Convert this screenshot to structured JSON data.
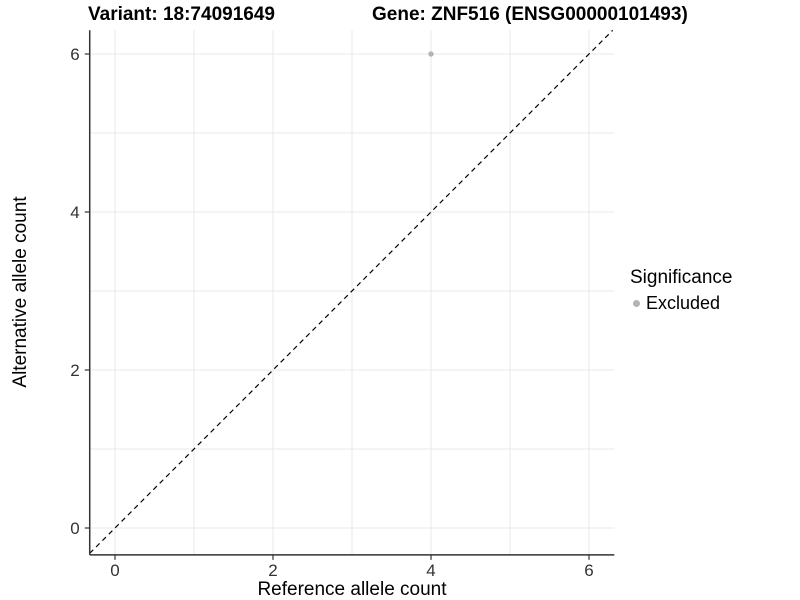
{
  "chart_data": {
    "type": "scatter",
    "title_left": "Variant: 18:74091649",
    "title_right": "Gene: ZNF516 (ENSG00000101493)",
    "xlabel": "Reference allele count",
    "ylabel": "Alternative allele count",
    "xlim": [
      -0.32,
      6.32
    ],
    "ylim": [
      -0.34,
      6.3
    ],
    "x_ticks": [
      0,
      2,
      4,
      6
    ],
    "y_ticks": [
      0,
      2,
      4,
      6
    ],
    "grid": true,
    "grid_step": 1,
    "points": [
      {
        "x": 4,
        "y": 6,
        "group": "Excluded"
      }
    ],
    "abline": {
      "slope": 1,
      "intercept": 0,
      "style": "dashed",
      "color": "#000000"
    },
    "legend": {
      "title": "Significance",
      "position": "right",
      "entries": [
        {
          "label": "Excluded",
          "color": "#b3b3b3"
        }
      ]
    },
    "colors": {
      "point": "#b3b3b3",
      "grid": "#e8e8e8",
      "axis": "#333333",
      "tick_text": "#333333",
      "background": "#ffffff"
    }
  }
}
